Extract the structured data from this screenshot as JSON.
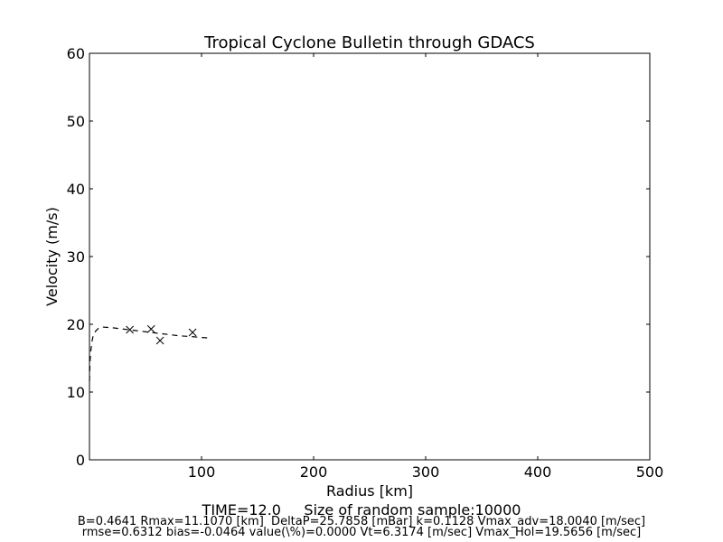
{
  "chart_data": {
    "type": "line",
    "title": "Tropical Cyclone Bulletin through GDACS",
    "xlabel": "Radius [km]",
    "ylabel": "Velocity (m/s)",
    "xlim": [
      0,
      500
    ],
    "ylim": [
      0,
      60
    ],
    "xticks": [
      100,
      200,
      300,
      400,
      500
    ],
    "yticks": [
      0,
      10,
      20,
      30,
      40,
      50,
      60
    ],
    "grid": false,
    "series": [
      {
        "style": "dashed-line",
        "color": "#000000",
        "x": [
          0,
          0.5,
          1,
          2,
          3,
          4,
          6,
          8,
          11.1,
          15,
          20,
          30,
          40,
          50,
          60,
          70,
          80,
          90,
          100,
          105
        ],
        "y": [
          11.6,
          14.5,
          15.8,
          17.2,
          18.1,
          18.6,
          19.1,
          19.4,
          19.6,
          19.55,
          19.5,
          19.3,
          19.1,
          18.9,
          18.7,
          18.5,
          18.3,
          18.2,
          18.05,
          18.0
        ]
      },
      {
        "style": "x-markers",
        "color": "#000000",
        "x": [
          36,
          55,
          63,
          92
        ],
        "y": [
          19.2,
          19.3,
          17.6,
          18.8
        ]
      }
    ],
    "footer": {
      "line1": "TIME=12.0     Size of random sample:10000",
      "line2": "B=0.4641 Rmax=11.1070 [km]  DeltaP=25.7858 [mBar] k=0.1128 Vmax_adv=18.0040 [m/sec]",
      "line3": "rmse=0.6312 bias=-0.0464 value(\\%)=0.0000 Vt=6.3174 [m/sec] Vmax_Hol=19.5656 [m/sec]"
    }
  }
}
